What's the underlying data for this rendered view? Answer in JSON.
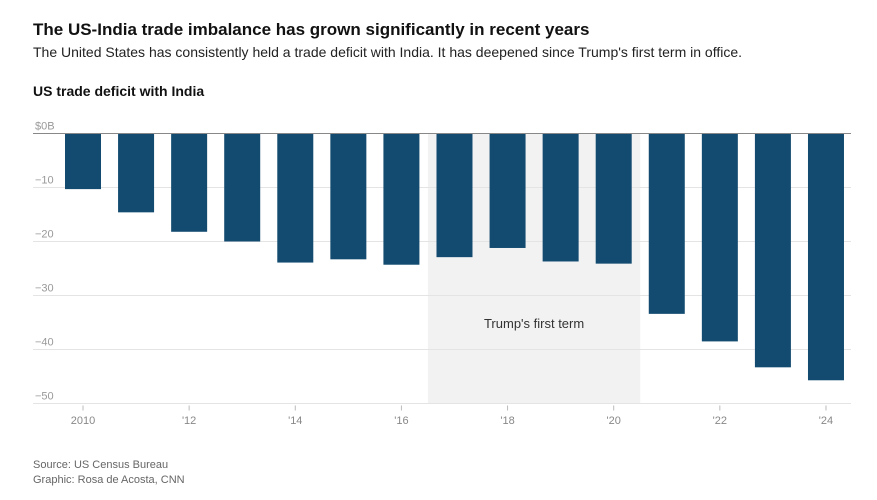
{
  "header": {
    "title": "The US-India trade imbalance has grown significantly in recent years",
    "subtitle": "The United States has consistently held a trade deficit with India. It has deepened since Trump's first term in office."
  },
  "chart_data": {
    "type": "bar",
    "title": "US trade deficit with India",
    "categories": [
      2010,
      2011,
      2012,
      2013,
      2014,
      2015,
      2016,
      2017,
      2018,
      2019,
      2020,
      2021,
      2022,
      2023,
      2024
    ],
    "x_tick_labels": {
      "2010": "2010",
      "2012": "'12",
      "2014": "'14",
      "2016": "'16",
      "2018": "'18",
      "2020": "'20",
      "2022": "'22",
      "2024": "'24"
    },
    "values": [
      -10.3,
      -14.6,
      -18.2,
      -20.0,
      -23.9,
      -23.3,
      -24.3,
      -22.9,
      -21.2,
      -23.7,
      -24.1,
      -33.4,
      -38.5,
      -43.3,
      -45.7
    ],
    "ylim": [
      -50,
      0
    ],
    "y_ticks": [
      0,
      -10,
      -20,
      -30,
      -40,
      -50
    ],
    "y_tick_labels": [
      "$0B",
      "−10",
      "−20",
      "−30",
      "−40",
      "−50"
    ],
    "grid": true,
    "bar_color": "#134b70",
    "annotation": {
      "label": "Trump's first term",
      "from": 2016.5,
      "to": 2020.5,
      "color": "#f2f2f2"
    }
  },
  "footer": {
    "source": "Source: US Census Bureau",
    "credit": "Graphic: Rosa de Acosta, CNN"
  }
}
